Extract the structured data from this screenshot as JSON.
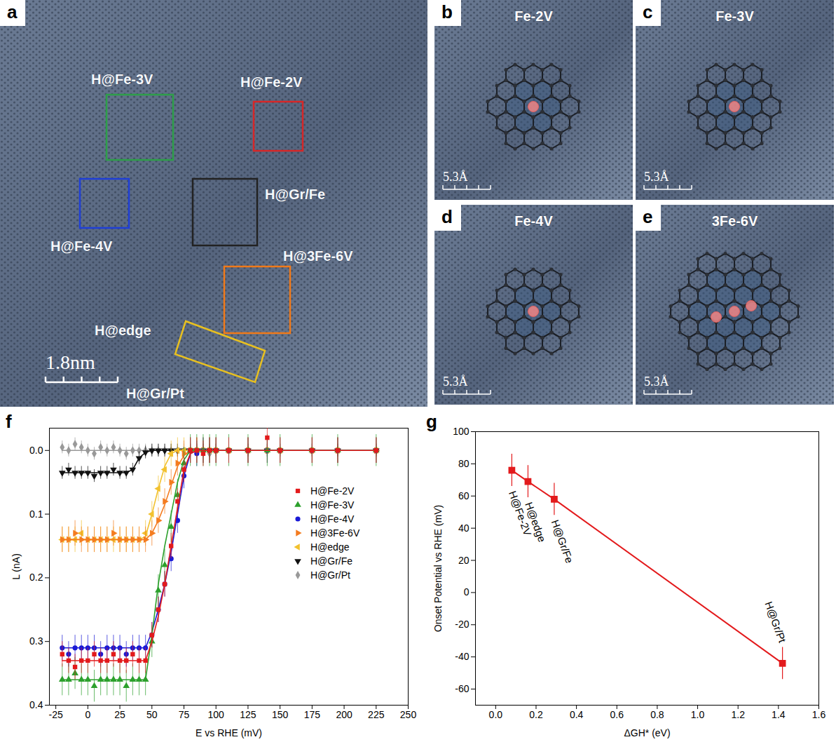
{
  "panels": {
    "a": {
      "letter": "a",
      "scale_bar": "1.8nm",
      "sites": [
        {
          "label": "H@Fe-3V",
          "color": "#2e9e4a"
        },
        {
          "label": "H@Fe-2V",
          "color": "#d62728"
        },
        {
          "label": "H@Fe-4V",
          "color": "#1f3fd6"
        },
        {
          "label": "H@Gr/Fe",
          "color": "#222222"
        },
        {
          "label": "H@3Fe-6V",
          "color": "#f07a1a"
        },
        {
          "label": "H@edge",
          "color": "#e8c020"
        },
        {
          "label": "H@Gr/Pt"
        }
      ]
    },
    "images": [
      {
        "letter": "b",
        "title": "Fe-2V",
        "scale_bar": "5.3Å"
      },
      {
        "letter": "c",
        "title": "Fe-3V",
        "scale_bar": "5.3Å"
      },
      {
        "letter": "d",
        "title": "Fe-4V",
        "scale_bar": "5.3Å"
      },
      {
        "letter": "e",
        "title": "3Fe-6V",
        "scale_bar": "5.3Å"
      }
    ]
  },
  "chart_data": [
    {
      "letter": "f",
      "type": "line",
      "x_label": "E vs RHE (mV)",
      "y_label": "L (nA)",
      "x": [
        -20,
        -15,
        -10,
        -5,
        0,
        5,
        10,
        15,
        20,
        25,
        30,
        35,
        40,
        45,
        50,
        55,
        60,
        65,
        70,
        75,
        80,
        85,
        90,
        95,
        100,
        110,
        125,
        140,
        150,
        175,
        195,
        225
      ],
      "xlim": [
        -30,
        250
      ],
      "xticks": [
        -25,
        0,
        25,
        50,
        75,
        100,
        125,
        150,
        175,
        200,
        225,
        250
      ],
      "ylim": [
        0.4,
        -0.035
      ],
      "yticks": [
        {
          "value": 0,
          "label": "0.0"
        },
        {
          "value": 0.1,
          "label": "0.1"
        },
        {
          "value": 0.2,
          "label": "0.2"
        },
        {
          "value": 0.3,
          "label": "0.3"
        },
        {
          "value": 0.4,
          "label": "0.4"
        }
      ],
      "legend": "right",
      "series": [
        {
          "name": "H@Fe-2V",
          "color": "#e31a1c",
          "marker": "square",
          "error": 0.02,
          "values": [
            0.32,
            0.33,
            0.34,
            0.33,
            0.33,
            0.32,
            0.33,
            0.33,
            0.32,
            0.33,
            0.33,
            0.32,
            0.33,
            0.33,
            0.29,
            0.25,
            0.21,
            0.15,
            0.08,
            0.03,
            0.0,
            0.0,
            0.005,
            0.0,
            0.0,
            0.0,
            0.0,
            -0.02,
            0.0,
            0.0,
            0.0,
            0.0
          ],
          "fit": [
            0.33,
            0.33,
            0.33,
            0.33,
            0.33,
            0.33,
            0.33,
            0.33,
            0.33,
            0.33,
            0.33,
            0.33,
            0.33,
            0.33,
            0.3,
            0.26,
            0.21,
            0.15,
            0.09,
            0.03,
            0.005,
            0,
            0,
            0,
            0,
            0,
            0,
            0,
            0,
            0,
            0,
            0
          ]
        },
        {
          "name": "H@Fe-3V",
          "color": "#2ca02c",
          "marker": "triangle",
          "error": 0.025,
          "values": [
            0.36,
            0.36,
            0.35,
            0.36,
            0.36,
            0.37,
            0.36,
            0.36,
            0.36,
            0.36,
            0.37,
            0.36,
            0.36,
            0.36,
            0.3,
            0.22,
            0.18,
            0.12,
            0.07,
            0.02,
            0.0,
            0,
            0,
            0,
            0,
            0,
            0,
            0,
            0,
            0,
            0,
            0
          ],
          "fit": [
            0.36,
            0.36,
            0.36,
            0.36,
            0.36,
            0.36,
            0.36,
            0.36,
            0.36,
            0.36,
            0.36,
            0.36,
            0.36,
            0.36,
            0.29,
            0.21,
            0.15,
            0.1,
            0.05,
            0.015,
            0.0,
            0,
            0,
            0,
            0,
            0,
            0,
            0,
            0,
            0,
            0,
            0
          ]
        },
        {
          "name": "H@Fe-4V",
          "color": "#1a1ad6",
          "marker": "circle",
          "error": 0.02,
          "values": [
            0.31,
            0.32,
            0.31,
            0.31,
            0.31,
            0.31,
            0.32,
            0.31,
            0.31,
            0.31,
            0.32,
            0.31,
            0.31,
            0.31,
            0.29,
            0.25,
            0.21,
            0.17,
            0.11,
            0.04,
            0.0,
            0.005,
            0,
            0,
            0,
            0,
            0,
            0,
            0,
            0,
            0,
            0
          ],
          "fit": [
            0.31,
            0.31,
            0.31,
            0.31,
            0.31,
            0.31,
            0.31,
            0.31,
            0.31,
            0.31,
            0.31,
            0.31,
            0.31,
            0.31,
            0.285,
            0.25,
            0.21,
            0.16,
            0.1,
            0.04,
            0.005,
            0,
            0,
            0,
            0,
            0,
            0,
            0,
            0,
            0,
            0,
            0
          ]
        },
        {
          "name": "H@3Fe-6V",
          "color": "#f47c20",
          "marker": "triangle-right",
          "error": 0.02,
          "values": [
            0.14,
            0.14,
            0.13,
            0.14,
            0.14,
            0.14,
            0.14,
            0.14,
            0.13,
            0.14,
            0.14,
            0.14,
            0.14,
            0.14,
            0.13,
            0.11,
            0.08,
            0.05,
            0.02,
            0.005,
            0.0,
            0,
            0,
            0,
            0,
            0,
            0,
            0,
            0,
            0,
            0,
            0
          ],
          "fit": [
            0.14,
            0.14,
            0.14,
            0.14,
            0.14,
            0.14,
            0.14,
            0.14,
            0.14,
            0.14,
            0.14,
            0.14,
            0.14,
            0.14,
            0.13,
            0.11,
            0.085,
            0.055,
            0.025,
            0.008,
            0.0,
            0,
            0,
            0,
            0,
            0,
            0,
            0,
            0,
            0,
            0,
            0
          ]
        },
        {
          "name": "H@edge",
          "color": "#f2c12e",
          "marker": "triangle-left",
          "error": 0.02,
          "values": [
            0.14,
            0.14,
            0.14,
            0.13,
            0.14,
            0.14,
            0.14,
            0.14,
            0.14,
            0.14,
            0.14,
            0.14,
            0.14,
            0.13,
            0.1,
            0.06,
            0.03,
            0.005,
            0.0,
            0.0,
            0.0,
            0,
            0,
            0,
            0,
            0,
            0,
            0,
            0,
            0,
            0,
            0
          ],
          "fit": [
            0.14,
            0.14,
            0.14,
            0.14,
            0.14,
            0.14,
            0.14,
            0.14,
            0.14,
            0.14,
            0.14,
            0.14,
            0.14,
            0.135,
            0.1,
            0.06,
            0.025,
            0.005,
            0.0,
            0.0,
            0.0,
            0,
            0,
            0,
            0,
            0,
            0,
            0,
            0,
            0,
            0,
            0
          ]
        },
        {
          "name": "H@Gr/Fe",
          "color": "#111111",
          "marker": "triangle-down",
          "error": 0.01,
          "values": [
            0.035,
            0.03,
            0.035,
            0.035,
            0.035,
            0.04,
            0.035,
            0.035,
            0.03,
            0.035,
            0.035,
            0.03,
            0.012,
            0.003,
            0.0,
            0.0,
            0.0,
            0.0,
            0.0,
            0.0,
            0.0,
            0,
            0,
            0,
            0,
            0,
            0,
            0,
            0,
            0,
            0,
            0
          ],
          "fit": [
            0.035,
            0.035,
            0.035,
            0.035,
            0.035,
            0.035,
            0.035,
            0.035,
            0.035,
            0.035,
            0.035,
            0.03,
            0.012,
            0.003,
            0,
            0,
            0,
            0,
            0,
            0,
            0,
            0,
            0,
            0,
            0,
            0,
            0,
            0,
            0,
            0,
            0,
            0
          ]
        },
        {
          "name": "H@Gr/Pt",
          "color": "#999999",
          "marker": "diamond",
          "error": 0.01,
          "values": [
            -0.005,
            0.0,
            -0.01,
            -0.005,
            0.0,
            0.005,
            -0.005,
            0.0,
            -0.005,
            0.0,
            0.005,
            0.0,
            0.0,
            0,
            0,
            0,
            0,
            0,
            0,
            0,
            0,
            0,
            0,
            0.005,
            0,
            0,
            0,
            0,
            0,
            0,
            0,
            0
          ],
          "fit": [
            0,
            0,
            0,
            0,
            0,
            0,
            0,
            0,
            0,
            0,
            0,
            0,
            0,
            0,
            0,
            0,
            0,
            0,
            0,
            0,
            0,
            0,
            0,
            0,
            0,
            0,
            0,
            0,
            0,
            0,
            0,
            0
          ]
        }
      ]
    },
    {
      "letter": "g",
      "type": "line",
      "x_label": "ΔGH* (eV)",
      "y_label": "Onset Potential vs RHE (mV)",
      "x": [
        0.08,
        0.16,
        0.29,
        1.42
      ],
      "values": [
        76,
        69,
        58,
        -44
      ],
      "errors": [
        10,
        10,
        10,
        10
      ],
      "point_labels": [
        "H@Fe-2V",
        "H@edge",
        "H@Gr/Fe",
        "H@Gr/Pt"
      ],
      "color": "#e31a1c",
      "marker": "square",
      "xlim": [
        -0.1,
        1.6
      ],
      "xticks": [
        {
          "value": 0,
          "label": "0.0"
        },
        {
          "value": 0.2,
          "label": "0.2"
        },
        {
          "value": 0.4,
          "label": "0.4"
        },
        {
          "value": 0.6,
          "label": "0.6"
        },
        {
          "value": 0.8,
          "label": "0.8"
        },
        {
          "value": 1.0,
          "label": "1.0"
        },
        {
          "value": 1.2,
          "label": "1.2"
        },
        {
          "value": 1.4,
          "label": "1.4"
        },
        {
          "value": 1.6,
          "label": "1.6"
        }
      ],
      "ylim": [
        -70,
        100
      ],
      "yticks": [
        -60,
        -40,
        -20,
        0,
        20,
        40,
        60,
        80,
        100
      ]
    }
  ]
}
